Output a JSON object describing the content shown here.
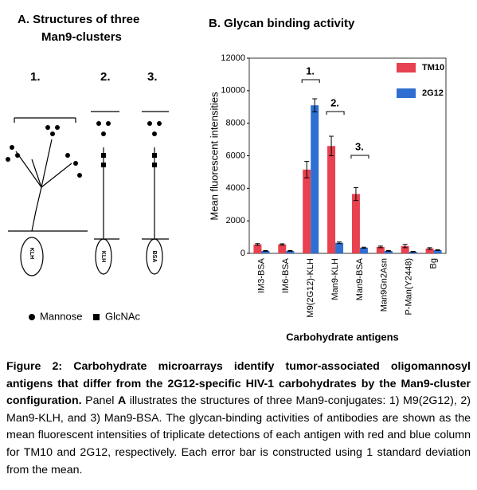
{
  "panel_a": {
    "title_lines": [
      "A. Structures of three",
      "Man9-clusters"
    ],
    "labels": [
      "1.",
      "2.",
      "3."
    ],
    "carriers": [
      "KLH",
      "KLH",
      "BSA"
    ],
    "legend": [
      "Mannose",
      "GlcNAc"
    ]
  },
  "chart_data": {
    "type": "bar",
    "title": "B.  Glycan binding activity",
    "x_label": "Carbohydrate antigens",
    "y_label": "Mean fluorescent intensities",
    "categories": [
      "IM3-BSA",
      "IM6-BSA",
      "M9(2G12)-KLH",
      "Man9-KLH",
      "Man9-BSA",
      "Man9Gn2Asn",
      "P-Man(Y2448)",
      "Bg"
    ],
    "series": [
      {
        "name": "TM10",
        "color": "#e8414f",
        "values": [
          550,
          550,
          5150,
          6600,
          3650,
          400,
          450,
          300
        ],
        "errors": [
          50,
          40,
          500,
          600,
          400,
          50,
          100,
          50
        ]
      },
      {
        "name": "2G12",
        "color": "#2f6fd1",
        "values": [
          150,
          150,
          9100,
          650,
          350,
          150,
          100,
          200
        ],
        "errors": [
          20,
          20,
          400,
          50,
          30,
          20,
          20,
          20
        ]
      }
    ],
    "annotations": [
      "1.",
      "2.",
      "3."
    ],
    "ylim": [
      0,
      12000
    ],
    "yticks": [
      0,
      2000,
      4000,
      6000,
      8000,
      10000,
      12000
    ],
    "legend": "upper right"
  },
  "caption": {
    "bold": "Figure 2: Carbohydrate microarrays identify tumor-associated oligomannosyl antigens that differ from the 2G12-specific HIV-1 carbohydrates by the Man9-cluster configuration.",
    "lead": " Panel ",
    "panel": "A",
    "rest": " illustrates the structures of three Man9-conjugates: 1) M9(2G12), 2) Man9-KLH, and 3) Man9-BSA. The glycan-binding activities of antibodies are shown as the mean fluorescent intensities of triplicate detections of each antigen with red and blue column for TM10 and 2G12, respectively. Each error bar is constructed using 1 standard deviation from the mean."
  }
}
